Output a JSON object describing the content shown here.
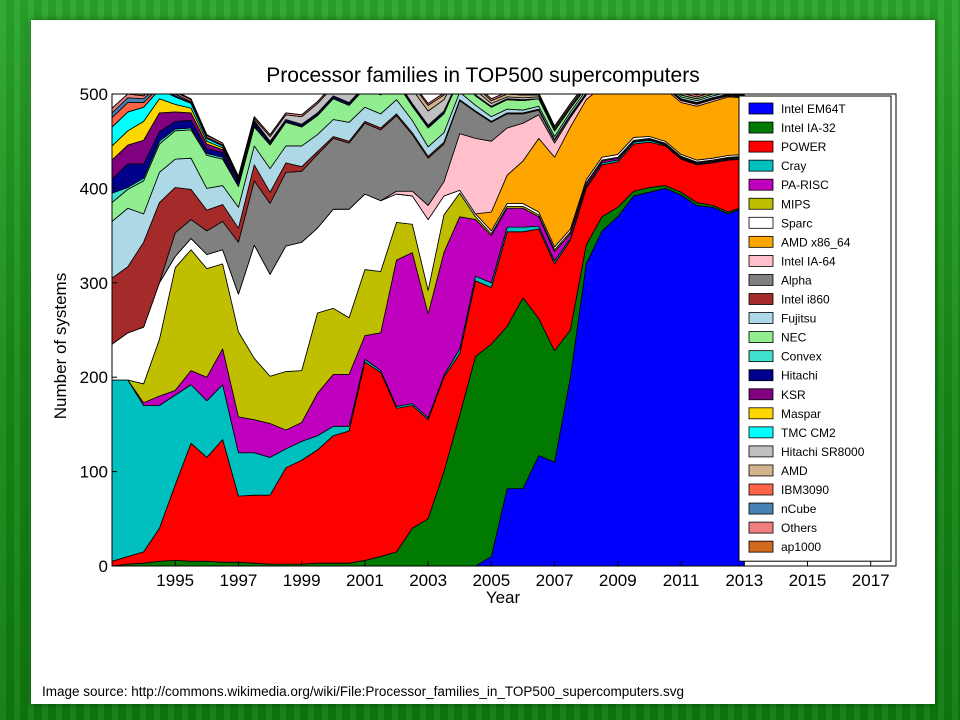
{
  "slide": {
    "source_text": "Image source: http://commons.wikimedia.org/wiki/File:Processor_families_in_TOP500_supercomputers.svg"
  },
  "chart_data": {
    "type": "area",
    "stacked": true,
    "title": "Processor families in TOP500 supercomputers",
    "xlabel": "Year",
    "ylabel": "Number of systems",
    "xlim": [
      1993.0,
      2017.8
    ],
    "ylim": [
      0,
      500
    ],
    "xticks": [
      1995,
      1997,
      1999,
      2001,
      2003,
      2005,
      2007,
      2009,
      2011,
      2013,
      2015,
      2017
    ],
    "yticks": [
      0,
      100,
      200,
      300,
      400,
      500
    ],
    "legend_position": "right",
    "x": [
      1993.0,
      1993.5,
      1994.0,
      1994.5,
      1995.0,
      1995.5,
      1996.0,
      1996.5,
      1997.0,
      1997.5,
      1998.0,
      1998.5,
      1999.0,
      1999.5,
      2000.0,
      2000.5,
      2001.0,
      2001.5,
      2002.0,
      2002.5,
      2003.0,
      2003.5,
      2004.0,
      2004.5,
      2005.0,
      2005.5,
      2006.0,
      2006.5,
      2007.0,
      2007.5,
      2008.0,
      2008.5,
      2009.0,
      2009.5,
      2010.0,
      2010.5,
      2011.0,
      2011.5,
      2012.0,
      2012.5,
      2013.0
    ],
    "series": [
      {
        "name": "Intel EM64T",
        "color": "#0000ff",
        "values": [
          0,
          0,
          0,
          0,
          0,
          0,
          0,
          0,
          0,
          0,
          0,
          0,
          0,
          0,
          0,
          0,
          0,
          0,
          0,
          0,
          0,
          0,
          0,
          0,
          10,
          82,
          82,
          117,
          110,
          200,
          320,
          355,
          370,
          392,
          396,
          400,
          393,
          382,
          380,
          373,
          380
        ]
      },
      {
        "name": "Intel IA-32",
        "color": "#007a00",
        "values": [
          0,
          2,
          3,
          5,
          6,
          5,
          5,
          4,
          4,
          3,
          2,
          2,
          2,
          3,
          3,
          3,
          6,
          10,
          15,
          40,
          50,
          100,
          160,
          222,
          225,
          172,
          202,
          145,
          118,
          50,
          20,
          15,
          10,
          5,
          5,
          3,
          3,
          3,
          2,
          2,
          1
        ]
      },
      {
        "name": "POWER",
        "color": "#ff0000",
        "values": [
          5,
          8,
          12,
          35,
          80,
          125,
          110,
          130,
          70,
          72,
          73,
          102,
          110,
          120,
          135,
          140,
          210,
          195,
          152,
          130,
          105,
          100,
          65,
          80,
          60,
          100,
          70,
          95,
          92,
          95,
          60,
          55,
          48,
          50,
          48,
          42,
          35,
          40,
          45,
          55,
          50
        ]
      },
      {
        "name": "Cray",
        "color": "#00bfbf",
        "values": [
          192,
          187,
          155,
          130,
          95,
          62,
          60,
          58,
          46,
          45,
          40,
          20,
          20,
          15,
          10,
          5,
          3,
          2,
          2,
          2,
          2,
          2,
          5,
          5,
          5,
          5,
          5,
          3,
          3,
          2,
          2,
          2,
          2,
          2,
          2,
          1,
          1,
          1,
          1,
          1,
          1
        ]
      },
      {
        "name": "PA-RISC",
        "color": "#bf00bf",
        "values": [
          0,
          0,
          3,
          10,
          5,
          15,
          25,
          38,
          38,
          35,
          36,
          20,
          20,
          45,
          55,
          55,
          25,
          40,
          155,
          160,
          110,
          130,
          140,
          60,
          50,
          20,
          20,
          10,
          10,
          5,
          3,
          2,
          2,
          1,
          1,
          1,
          1,
          1,
          1,
          1,
          1
        ]
      },
      {
        "name": "MIPS",
        "color": "#bfbf00",
        "values": [
          0,
          0,
          20,
          60,
          130,
          128,
          115,
          90,
          90,
          65,
          50,
          62,
          55,
          85,
          70,
          60,
          70,
          65,
          40,
          30,
          25,
          40,
          25,
          3,
          2,
          2,
          2,
          2,
          2,
          2,
          1,
          1,
          1,
          1,
          1,
          1,
          1,
          1,
          1,
          1,
          1
        ]
      },
      {
        "name": "Sparc",
        "color": "#ffffff",
        "values": [
          38,
          50,
          60,
          60,
          12,
          12,
          15,
          15,
          40,
          120,
          108,
          133,
          136,
          90,
          105,
          115,
          80,
          75,
          30,
          30,
          75,
          20,
          3,
          3,
          3,
          3,
          3,
          3,
          3,
          3,
          3,
          3,
          3,
          3,
          2,
          2,
          2,
          2,
          2,
          2,
          2
        ]
      },
      {
        "name": "AMD x86_64",
        "color": "#ffa500",
        "values": [
          0,
          0,
          0,
          0,
          0,
          0,
          0,
          0,
          0,
          0,
          0,
          0,
          0,
          0,
          0,
          0,
          0,
          0,
          0,
          0,
          0,
          0,
          0,
          0,
          20,
          30,
          45,
          78,
          95,
          108,
          85,
          75,
          65,
          50,
          45,
          55,
          55,
          57,
          60,
          62,
          60
        ]
      },
      {
        "name": "Intel IA-64",
        "color": "#ffc0cb",
        "values": [
          0,
          0,
          0,
          0,
          0,
          0,
          0,
          0,
          0,
          0,
          0,
          0,
          0,
          0,
          0,
          0,
          0,
          0,
          3,
          5,
          15,
          15,
          60,
          80,
          75,
          50,
          40,
          25,
          15,
          10,
          5,
          5,
          3,
          3,
          3,
          2,
          2,
          2,
          2,
          1,
          1
        ]
      },
      {
        "name": "Alpha",
        "color": "#808080",
        "values": [
          0,
          0,
          0,
          0,
          25,
          20,
          25,
          30,
          55,
          68,
          75,
          78,
          75,
          78,
          75,
          70,
          75,
          75,
          80,
          60,
          50,
          40,
          35,
          28,
          20,
          15,
          10,
          5,
          3,
          2,
          1,
          1,
          1,
          1,
          1,
          1,
          1,
          1,
          1,
          1,
          1
        ]
      },
      {
        "name": "Intel i860",
        "color": "#a52a2a",
        "values": [
          70,
          70,
          90,
          85,
          48,
          32,
          22,
          18,
          15,
          17,
          12,
          10,
          5,
          3,
          2,
          2,
          2,
          2,
          2,
          2,
          2,
          2,
          1,
          1,
          1,
          1,
          1,
          1,
          1,
          1,
          1,
          1,
          1,
          1,
          1,
          1,
          1,
          1,
          1,
          1,
          1
        ]
      },
      {
        "name": "Fujitsu",
        "color": "#add8e6",
        "values": [
          60,
          62,
          30,
          32,
          30,
          33,
          23,
          20,
          22,
          20,
          25,
          18,
          22,
          18,
          18,
          20,
          15,
          15,
          15,
          13,
          10,
          10,
          8,
          6,
          5,
          4,
          3,
          3,
          3,
          3,
          3,
          3,
          2,
          2,
          2,
          2,
          2,
          2,
          2,
          2,
          2
        ]
      },
      {
        "name": "NEC",
        "color": "#90ee90",
        "values": [
          20,
          20,
          35,
          30,
          30,
          30,
          35,
          28,
          22,
          20,
          25,
          25,
          20,
          20,
          22,
          18,
          20,
          20,
          18,
          15,
          20,
          20,
          15,
          10,
          10,
          10,
          10,
          8,
          6,
          4,
          3,
          2,
          2,
          2,
          2,
          2,
          2,
          2,
          2,
          2,
          2
        ]
      },
      {
        "name": "Convex",
        "color": "#40e0d0",
        "values": [
          10,
          2,
          3,
          3,
          2,
          2,
          2,
          2,
          1,
          1,
          1,
          1,
          1,
          1,
          1,
          1,
          1,
          1,
          1,
          1,
          1,
          1,
          0,
          0,
          0,
          0,
          0,
          0,
          0,
          0,
          0,
          0,
          0,
          0,
          0,
          0,
          0,
          0,
          0,
          0,
          0
        ]
      },
      {
        "name": "Hitachi",
        "color": "#00008b",
        "values": [
          15,
          25,
          15,
          10,
          8,
          8,
          5,
          5,
          4,
          3,
          2,
          2,
          2,
          2,
          2,
          2,
          2,
          2,
          2,
          2,
          2,
          2,
          1,
          1,
          1,
          1,
          1,
          0,
          0,
          0,
          0,
          0,
          0,
          0,
          0,
          0,
          0,
          0,
          0,
          0,
          0
        ]
      },
      {
        "name": "KSR",
        "color": "#800080",
        "values": [
          20,
          20,
          25,
          20,
          10,
          8,
          5,
          3,
          2,
          1,
          1,
          0,
          0,
          0,
          0,
          0,
          0,
          0,
          0,
          0,
          0,
          0,
          0,
          0,
          0,
          0,
          0,
          0,
          0,
          0,
          0,
          0,
          0,
          0,
          0,
          0,
          0,
          0,
          0,
          0,
          0
        ]
      },
      {
        "name": "Maspar",
        "color": "#ffd700",
        "values": [
          15,
          15,
          20,
          15,
          8,
          5,
          3,
          2,
          1,
          1,
          0,
          0,
          0,
          0,
          0,
          0,
          0,
          0,
          0,
          0,
          0,
          0,
          0,
          0,
          0,
          0,
          0,
          0,
          0,
          0,
          0,
          0,
          0,
          0,
          0,
          0,
          0,
          0,
          0,
          0,
          0
        ]
      },
      {
        "name": "TMC CM2",
        "color": "#00ffff",
        "values": [
          20,
          20,
          15,
          10,
          8,
          5,
          3,
          2,
          1,
          1,
          0,
          0,
          0,
          0,
          0,
          0,
          0,
          0,
          0,
          0,
          0,
          0,
          0,
          0,
          0,
          0,
          0,
          0,
          0,
          0,
          0,
          0,
          0,
          0,
          0,
          0,
          0,
          0,
          0,
          0,
          0
        ]
      },
      {
        "name": "Hitachi SR8000",
        "color": "#c0c0c0",
        "values": [
          0,
          0,
          0,
          0,
          0,
          0,
          0,
          0,
          0,
          2,
          5,
          5,
          8,
          10,
          10,
          12,
          15,
          15,
          18,
          15,
          15,
          12,
          8,
          5,
          3,
          2,
          2,
          2,
          1,
          1,
          1,
          1,
          1,
          1,
          0,
          0,
          0,
          0,
          0,
          0,
          0
        ]
      },
      {
        "name": "AMD",
        "color": "#d2b48c",
        "values": [
          0,
          0,
          0,
          0,
          0,
          0,
          0,
          0,
          0,
          0,
          0,
          0,
          0,
          0,
          0,
          0,
          0,
          0,
          0,
          5,
          6,
          5,
          4,
          4,
          3,
          3,
          3,
          2,
          2,
          2,
          2,
          2,
          2,
          2,
          2,
          2,
          2,
          2,
          2,
          2,
          2
        ]
      },
      {
        "name": "IBM3090",
        "color": "#ff6347",
        "values": [
          10,
          10,
          5,
          2,
          1,
          1,
          0,
          0,
          0,
          0,
          0,
          0,
          0,
          0,
          0,
          0,
          0,
          0,
          0,
          0,
          0,
          0,
          0,
          0,
          0,
          0,
          0,
          0,
          0,
          0,
          0,
          0,
          0,
          0,
          0,
          0,
          0,
          0,
          0,
          0,
          0
        ]
      },
      {
        "name": "nCube",
        "color": "#4682b4",
        "values": [
          5,
          5,
          4,
          3,
          2,
          1,
          1,
          1,
          0,
          0,
          0,
          0,
          0,
          0,
          0,
          0,
          0,
          0,
          0,
          0,
          0,
          0,
          0,
          0,
          0,
          0,
          0,
          0,
          0,
          0,
          0,
          0,
          0,
          0,
          0,
          0,
          0,
          0,
          0,
          0,
          0
        ]
      },
      {
        "name": "Others",
        "color": "#f08080",
        "values": [
          5,
          4,
          3,
          3,
          2,
          2,
          2,
          2,
          2,
          2,
          2,
          2,
          2,
          2,
          2,
          2,
          2,
          2,
          2,
          2,
          2,
          2,
          2,
          2,
          2,
          2,
          2,
          2,
          2,
          2,
          2,
          2,
          2,
          2,
          2,
          2,
          2,
          2,
          2,
          2,
          2
        ]
      },
      {
        "name": "ap1000",
        "color": "#d2691e",
        "values": [
          0,
          0,
          2,
          2,
          1,
          1,
          1,
          0,
          0,
          0,
          0,
          0,
          0,
          0,
          0,
          0,
          0,
          0,
          0,
          0,
          0,
          0,
          0,
          0,
          0,
          0,
          0,
          0,
          0,
          0,
          0,
          0,
          0,
          0,
          0,
          0,
          0,
          0,
          0,
          0,
          0
        ]
      }
    ]
  }
}
